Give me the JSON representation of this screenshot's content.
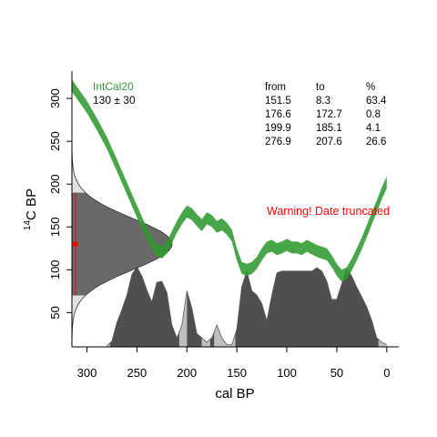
{
  "chart_data": {
    "type": "area",
    "calibration_curve": {
      "name": "IntCal20",
      "color": "#2e9a2e",
      "x": [
        315,
        300,
        290,
        280,
        270,
        260,
        250,
        240,
        232,
        225,
        220,
        215,
        210,
        205,
        200,
        195,
        190,
        185,
        180,
        175,
        170,
        165,
        160,
        155,
        150,
        145,
        140,
        135,
        130,
        125,
        120,
        115,
        110,
        105,
        100,
        95,
        90,
        85,
        80,
        75,
        70,
        65,
        60,
        55,
        50,
        45,
        40,
        35,
        30,
        25,
        20,
        15,
        10,
        5,
        0
      ],
      "y": [
        315,
        290,
        270,
        248,
        222,
        195,
        168,
        142,
        125,
        120,
        126,
        138,
        150,
        160,
        168,
        165,
        158,
        152,
        160,
        157,
        150,
        153,
        148,
        140,
        118,
        102,
        100,
        102,
        108,
        118,
        126,
        128,
        124,
        126,
        129,
        126,
        126,
        124,
        128,
        125,
        122,
        120,
        118,
        110,
        100,
        93,
        96,
        106,
        118,
        131,
        145,
        160,
        174,
        189,
        202
      ],
      "half_width": 7
    },
    "date": {
      "label": "130 ± 30",
      "mean": 130,
      "sd": 30,
      "color": "#ff0000"
    },
    "calibrated_density": {
      "x": [
        280,
        275,
        270,
        265,
        260,
        255,
        250,
        245,
        240,
        235,
        230,
        225,
        220,
        215,
        210,
        205,
        200,
        195,
        190,
        185,
        180,
        175,
        170,
        165,
        160,
        155,
        150,
        145,
        140,
        135,
        130,
        125,
        120,
        115,
        110,
        105,
        100,
        95,
        90,
        85,
        80,
        75,
        70,
        65,
        60,
        55,
        50,
        45,
        40,
        35,
        30,
        25,
        20,
        15,
        10,
        5,
        0
      ],
      "d": [
        0.01,
        0.06,
        0.28,
        0.43,
        0.6,
        0.84,
        0.93,
        0.82,
        0.66,
        0.52,
        0.75,
        0.76,
        0.63,
        0.25,
        0.1,
        0.25,
        0.65,
        0.45,
        0.15,
        0.1,
        0.05,
        0.1,
        0.25,
        0.1,
        0.02,
        0.02,
        0.2,
        0.7,
        0.88,
        0.65,
        0.6,
        0.5,
        0.3,
        0.6,
        0.86,
        0.88,
        0.88,
        0.88,
        0.88,
        0.88,
        0.88,
        0.88,
        0.92,
        0.88,
        0.76,
        0.55,
        0.55,
        0.73,
        0.91,
        0.82,
        0.69,
        0.58,
        0.46,
        0.3,
        0.1,
        0.05,
        0.02
      ]
    },
    "hpd_ranges": {
      "headers": [
        "from",
        "to",
        "%"
      ],
      "rows": [
        [
          "151.5",
          "8.3",
          "63.4"
        ],
        [
          "176.6",
          "172.7",
          "0.8"
        ],
        [
          "199.9",
          "185.1",
          "4.1"
        ],
        [
          "276.9",
          "207.6",
          "26.6"
        ]
      ]
    },
    "warning": {
      "text": "Warning! Date truncated",
      "color": "#ff0000"
    },
    "xlabel": "cal BP",
    "ylabel_main": "C BP",
    "ylabel_sup": "14",
    "xlim": [
      315,
      -12
    ],
    "ylim": [
      10,
      332
    ],
    "x_ticks": [
      300,
      250,
      200,
      150,
      100,
      50,
      0
    ],
    "y_ticks": [
      50,
      100,
      150,
      200,
      250,
      300
    ],
    "colors": {
      "density_fill": "#4f4f4f",
      "density_outside": "#bfbfbf",
      "c14_fill": "#404040"
    }
  }
}
